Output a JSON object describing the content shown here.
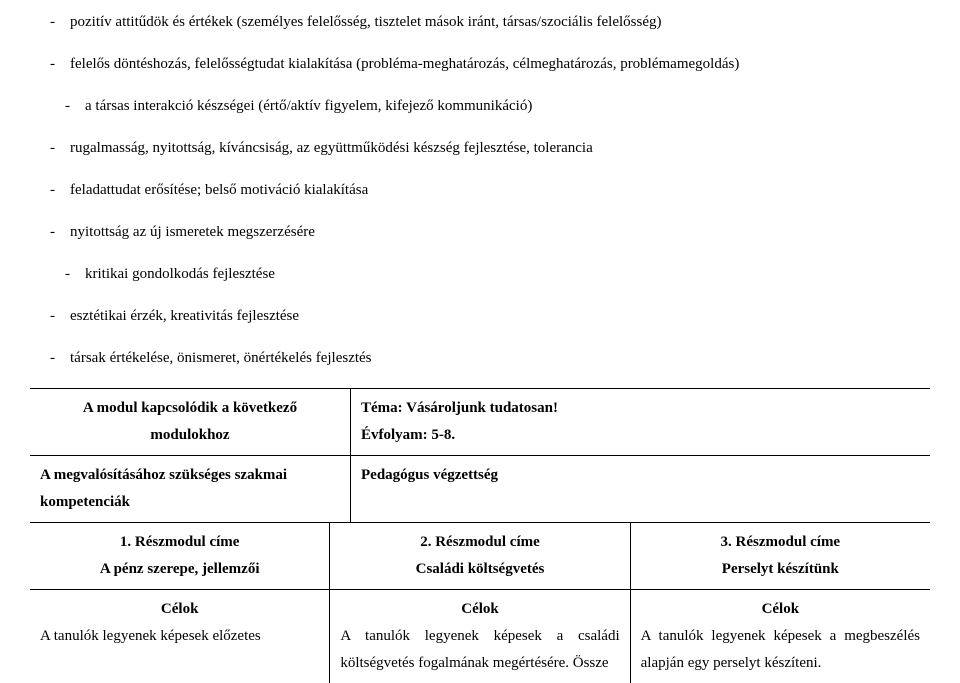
{
  "bullets": [
    "pozitív attitűdök és értékek (személyes felelősség, tisztelet mások iránt, társas/szociális felelősség)",
    "felelős döntéshozás, felelősségtudat kialakítása (probléma-meghatározás, célmeghatározás, problémamegoldás)",
    "a társas interakció készségei (értő/aktív figyelem, kifejező kommunikáció)",
    "rugalmasság, nyitottság, kíváncsiság, az együttműködési készség fejlesztése, tolerancia",
    "feladattudat erősítése; belső motiváció kialakítása",
    "nyitottság az új ismeretek megszerzésére",
    "kritikai gondolkodás fejlesztése",
    "esztétikai érzék, kreativitás fejlesztése",
    "társak értékelése, önismeret, önértékelés fejlesztés"
  ],
  "row1": {
    "left_line1": "A modul kapcsolódik a következő",
    "left_line2": "modulokhoz",
    "right_line1": "Téma: Vásároljunk tudatosan!",
    "right_line2": "Évfolyam: 5-8."
  },
  "row2": {
    "left_line1": "A megvalósításához szükséges szakmai",
    "left_line2": "kompetenciák",
    "right": "Pedagógus végzettség"
  },
  "titles": {
    "c1_num": "1.   Részmodul címe",
    "c1_sub": "A pénz szerepe, jellemzői",
    "c2_num": "2.   Részmodul címe",
    "c2_sub": "Családi költségvetés",
    "c3_num": "3. Részmodul címe",
    "c3_sub": "Perselyt készítünk"
  },
  "goals_heading": "Célok",
  "goals": {
    "c1": "A   tanulók   legyenek   képesek   előzetes",
    "c2": "A   tanulók   legyenek   képesek   a   családi költségvetés  fogalmának  megértésére.  Össze",
    "c3": "A tanulók legyenek képesek a megbeszélés alapján egy perselyt készíteni."
  }
}
